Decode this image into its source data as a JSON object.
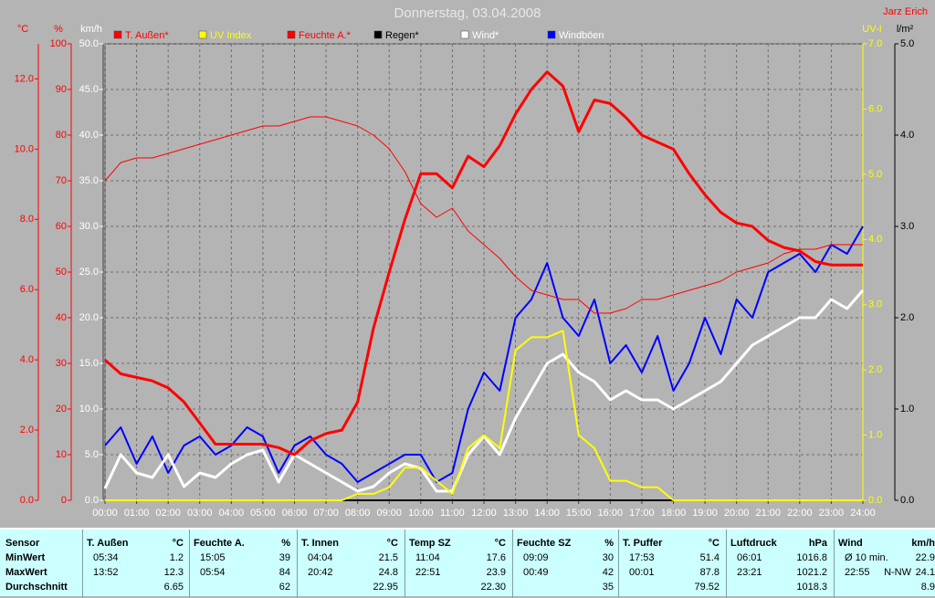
{
  "chart_data": {
    "type": "line",
    "title": "Donnerstag, 03.04.2008",
    "author": "Jarz Erich",
    "x": [
      0,
      0.5,
      1,
      1.5,
      2,
      2.5,
      3,
      3.5,
      4,
      4.5,
      5,
      5.5,
      6,
      6.5,
      7,
      7.5,
      8,
      8.5,
      9,
      9.5,
      10,
      10.5,
      11,
      11.5,
      12,
      12.5,
      13,
      13.5,
      14,
      14.5,
      15,
      15.5,
      16,
      16.5,
      17,
      17.5,
      18,
      18.5,
      19,
      19.5,
      20,
      20.5,
      21,
      21.5,
      22,
      22.5,
      23,
      23.5,
      24
    ],
    "xlim": [
      0,
      24
    ],
    "xticks": [
      {
        "value": 0,
        "label": "00:00"
      },
      {
        "value": 1,
        "label": "01:00"
      },
      {
        "value": 2,
        "label": "02:00"
      },
      {
        "value": 3,
        "label": "03:00"
      },
      {
        "value": 4,
        "label": "04:00"
      },
      {
        "value": 5,
        "label": "05:00"
      },
      {
        "value": 6,
        "label": "06:00"
      },
      {
        "value": 7,
        "label": "07:00"
      },
      {
        "value": 8,
        "label": "08:00"
      },
      {
        "value": 9,
        "label": "09:00"
      },
      {
        "value": 10,
        "label": "10:00"
      },
      {
        "value": 11,
        "label": "11:00"
      },
      {
        "value": 12,
        "label": "12:00"
      },
      {
        "value": 13,
        "label": "13:00"
      },
      {
        "value": 14,
        "label": "14:00"
      },
      {
        "value": 15,
        "label": "15:00"
      },
      {
        "value": 16,
        "label": "16:00"
      },
      {
        "value": 17,
        "label": "17:00"
      },
      {
        "value": 18,
        "label": "18:00"
      },
      {
        "value": 19,
        "label": "19:00"
      },
      {
        "value": 20,
        "label": "20:00"
      },
      {
        "value": 21,
        "label": "21:00"
      },
      {
        "value": 22,
        "label": "22:00"
      },
      {
        "value": 23,
        "label": "23:00"
      },
      {
        "value": 24,
        "label": "24:00"
      }
    ],
    "grid": true,
    "axes": [
      {
        "label": "°C",
        "color": "#ff0000",
        "lim": [
          0,
          13
        ],
        "ticks": [
          {
            "value": 0,
            "label": "0.0"
          },
          {
            "value": 2,
            "label": "2.0"
          },
          {
            "value": 4,
            "label": "4.0"
          },
          {
            "value": 6,
            "label": "6.0"
          },
          {
            "value": 8,
            "label": "8.0"
          },
          {
            "value": 10,
            "label": "10.0"
          },
          {
            "value": 12,
            "label": "12.0"
          }
        ]
      },
      {
        "label": "%",
        "color": "#ff0000",
        "lim": [
          0,
          100
        ],
        "ticks": [
          0,
          10,
          20,
          30,
          40,
          50,
          60,
          70,
          80,
          90,
          100
        ]
      },
      {
        "label": "km/h",
        "color": "#ffffff",
        "lim": [
          0,
          50
        ],
        "ticks": [
          {
            "value": 0,
            "label": "0.0"
          },
          {
            "value": 5,
            "label": "5.0"
          },
          {
            "value": 10,
            "label": "10.0"
          },
          {
            "value": 15,
            "label": "15.0"
          },
          {
            "value": 20,
            "label": "20.0"
          },
          {
            "value": 25,
            "label": "25.0"
          },
          {
            "value": 30,
            "label": "30.0"
          },
          {
            "value": 35,
            "label": "35.0"
          },
          {
            "value": 40,
            "label": "40.0"
          },
          {
            "value": 45,
            "label": "45.0"
          },
          {
            "value": 50,
            "label": "50.0"
          }
        ],
        "grid": true
      },
      {
        "label": "UV-I",
        "color": "#ffff00",
        "lim": [
          0,
          7
        ],
        "ticks": [
          {
            "value": 0,
            "label": "0.0"
          },
          {
            "value": 1,
            "label": "1.0"
          },
          {
            "value": 2,
            "label": "2.0"
          },
          {
            "value": 3,
            "label": "3.0"
          },
          {
            "value": 4,
            "label": "4.0"
          },
          {
            "value": 5,
            "label": "5.0"
          },
          {
            "value": 6,
            "label": "6.0"
          },
          {
            "value": 7,
            "label": "7.0"
          }
        ]
      },
      {
        "label": "l/m²",
        "color": "#000000",
        "lim": [
          0,
          5
        ],
        "ticks": [
          {
            "value": 0,
            "label": "0.0"
          },
          {
            "value": 1,
            "label": "1.0"
          },
          {
            "value": 2,
            "label": "2.0"
          },
          {
            "value": 3,
            "label": "3.0"
          },
          {
            "value": 4,
            "label": "4.0"
          },
          {
            "value": 5,
            "label": "5.0"
          }
        ]
      }
    ],
    "series": [
      {
        "name": "T. Außen*",
        "color": "#ff0000",
        "label_color": "#ff0000",
        "axis": 0,
        "line_width": 3,
        "values": [
          4.0,
          3.6,
          3.5,
          3.4,
          3.2,
          2.8,
          2.2,
          1.6,
          1.6,
          1.6,
          1.6,
          1.5,
          1.3,
          1.7,
          1.9,
          2.0,
          2.8,
          4.9,
          6.5,
          8.0,
          9.3,
          9.3,
          8.9,
          9.8,
          9.5,
          10.1,
          11.0,
          11.7,
          12.2,
          11.8,
          10.5,
          11.4,
          11.3,
          10.9,
          10.4,
          10.2,
          10.0,
          9.3,
          8.7,
          8.2,
          7.9,
          7.8,
          7.4,
          7.2,
          7.1,
          6.8,
          6.7,
          6.7,
          6.7
        ]
      },
      {
        "name": "UV Index",
        "color": "#ffff00",
        "label_color": "#ffff00",
        "axis": 3,
        "line_width": 2,
        "values": [
          0,
          0,
          0,
          0,
          0,
          0,
          0,
          0,
          0,
          0,
          0,
          0,
          0,
          0,
          0,
          0,
          0.1,
          0.1,
          0.2,
          0.5,
          0.5,
          0.3,
          0.1,
          0.8,
          1.0,
          0.8,
          2.3,
          2.5,
          2.5,
          2.6,
          1.0,
          0.8,
          0.3,
          0.3,
          0.2,
          0.2,
          0,
          0,
          0,
          0,
          0,
          0,
          0,
          0,
          0,
          0,
          0,
          0,
          0
        ]
      },
      {
        "name": "Feuchte A.*",
        "color": "#ff0000",
        "label_color": "#ff0000",
        "axis": 1,
        "line_width": 1,
        "values": [
          70,
          74,
          75,
          75,
          76,
          77,
          78,
          79,
          80,
          81,
          82,
          82,
          83,
          84,
          84,
          83,
          82,
          80,
          77,
          72,
          65,
          62,
          64,
          59,
          56,
          53,
          49,
          46,
          45,
          44,
          44,
          41,
          41,
          42,
          44,
          44,
          45,
          46,
          47,
          48,
          50,
          51,
          52,
          54,
          55,
          55,
          56,
          56,
          56
        ]
      },
      {
        "name": "Regen*",
        "color": "#000000",
        "label_color": "#000000",
        "axis": 4,
        "line_width": 2,
        "values": [
          0,
          0,
          0,
          0,
          0,
          0,
          0,
          0,
          0,
          0,
          0,
          0,
          0,
          0,
          0,
          0,
          0,
          0,
          0,
          0,
          0,
          0,
          0,
          0,
          0,
          0,
          0,
          0,
          0,
          0,
          0,
          0,
          0,
          0,
          0,
          0,
          0,
          0,
          0,
          0,
          0,
          0,
          0,
          0,
          0,
          0,
          0,
          0,
          0
        ]
      },
      {
        "name": "Wind*",
        "color": "#ffffff",
        "label_color": "#ffffff",
        "axis": 2,
        "line_width": 3,
        "values": [
          1.3,
          5,
          3,
          2.5,
          5,
          1.5,
          3,
          2.5,
          4,
          5,
          5.5,
          2,
          5,
          4,
          3,
          2,
          1,
          1.5,
          3,
          4,
          3.5,
          1,
          1,
          5,
          7,
          5,
          9,
          12,
          15,
          16,
          14,
          13,
          11,
          12,
          11,
          11,
          10,
          11,
          12,
          13,
          15,
          17,
          18,
          19,
          20,
          20,
          22,
          21,
          23
        ]
      },
      {
        "name": "Windböen",
        "color": "#0000ff",
        "label_color": "#ffffff",
        "axis": 2,
        "line_width": 2,
        "values": [
          6,
          8,
          4,
          7,
          3,
          6,
          7,
          5,
          6,
          8,
          7,
          3,
          6,
          7,
          5,
          4,
          2,
          3,
          4,
          5,
          5,
          2,
          3,
          10,
          14,
          12,
          20,
          22,
          26,
          20,
          18,
          22,
          15,
          17,
          14,
          18,
          12,
          15,
          20,
          16,
          22,
          20,
          25,
          26,
          27,
          25,
          28,
          27,
          30
        ]
      }
    ]
  },
  "table": {
    "header": "Sensor",
    "row_labels": [
      "MinWert",
      "MaxWert",
      "Durchschnitt"
    ],
    "sensors": [
      {
        "name": "T. Außen",
        "unit": "°C",
        "min": [
          "05:34",
          "1.2"
        ],
        "max": [
          "13:52",
          "12.3"
        ],
        "avg": "6.65"
      },
      {
        "name": "Feuchte A.",
        "unit": "%",
        "min": [
          "15:05",
          "39"
        ],
        "max": [
          "05:54",
          "84"
        ],
        "avg": "62"
      },
      {
        "name": "T. Innen",
        "unit": "°C",
        "min": [
          "04:04",
          "21.5"
        ],
        "max": [
          "20:42",
          "24.8"
        ],
        "avg": "22.95"
      },
      {
        "name": "Temp SZ",
        "unit": "°C",
        "min": [
          "11:04",
          "17.6"
        ],
        "max": [
          "22:51",
          "23.9"
        ],
        "avg": "22.30"
      },
      {
        "name": "Feuchte SZ",
        "unit": "%",
        "min": [
          "09:09",
          "30"
        ],
        "max": [
          "00:49",
          "42"
        ],
        "avg": "35"
      },
      {
        "name": "T. Puffer",
        "unit": "°C",
        "min": [
          "17:53",
          "51.4"
        ],
        "max": [
          "00:01",
          "87.8"
        ],
        "avg": "79.52"
      },
      {
        "name": "Luftdruck",
        "unit": "hPa",
        "min": [
          "06:01",
          "1016.8"
        ],
        "max": [
          "23:21",
          "1021.2"
        ],
        "avg": "1018.3"
      },
      {
        "name": "Wind",
        "unit": "km/h",
        "min": [
          "Ø 10 min.",
          "22.9"
        ],
        "max": [
          "22:55",
          "N-NW",
          "24.1"
        ],
        "avg": "8.9"
      }
    ]
  }
}
